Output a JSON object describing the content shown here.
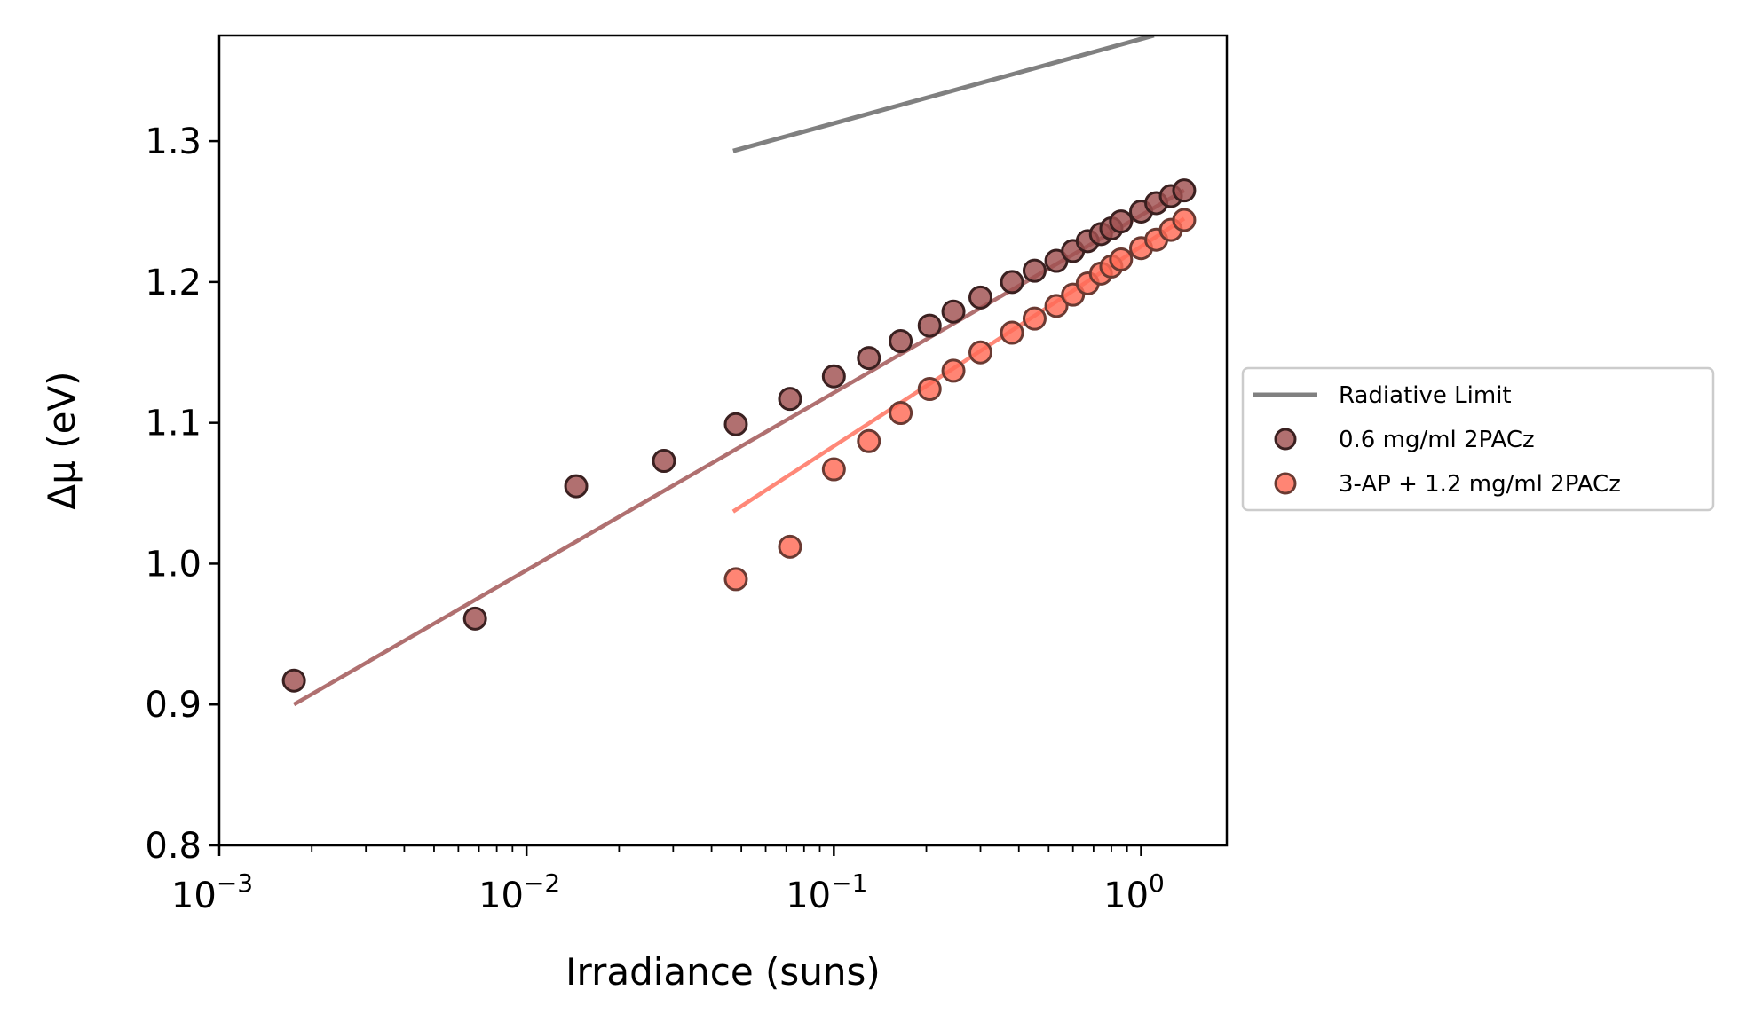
{
  "chart_data": {
    "type": "scatter",
    "xlabel": "Irradiance (suns)",
    "ylabel": "Δμ (eV)",
    "xscale": "log",
    "xlim": [
      0.001,
      1.9
    ],
    "ylim": [
      0.8,
      1.375
    ],
    "x_ticks": [
      {
        "value": 0.001,
        "base": "10",
        "exp": "−3"
      },
      {
        "value": 0.01,
        "base": "10",
        "exp": "−2"
      },
      {
        "value": 0.1,
        "base": "10",
        "exp": "−1"
      },
      {
        "value": 1,
        "base": "10",
        "exp": "0"
      }
    ],
    "y_ticks": [
      {
        "value": 0.8,
        "label": "0.8"
      },
      {
        "value": 0.9,
        "label": "0.9"
      },
      {
        "value": 1.0,
        "label": "1.0"
      },
      {
        "value": 1.1,
        "label": "1.1"
      },
      {
        "value": 1.2,
        "label": "1.2"
      },
      {
        "value": 1.3,
        "label": "1.3"
      }
    ],
    "grid": false,
    "legend_placement": "center-left outside right",
    "series": [
      {
        "name": "Radiative Limit",
        "kind": "line",
        "color": "#808080",
        "x": [
          0.047,
          1.1
        ],
        "y": [
          1.293,
          1.375
        ]
      },
      {
        "name": "0.6 mg/ml 2PACz",
        "kind": "scatter",
        "color": "#a05050",
        "edge": "#3a2020",
        "x": [
          0.00175,
          0.0068,
          0.0145,
          0.028,
          0.048,
          0.072,
          0.1,
          0.13,
          0.165,
          0.205,
          0.245,
          0.3,
          0.38,
          0.45,
          0.53,
          0.6,
          0.67,
          0.74,
          0.8,
          0.86,
          1.0,
          1.12,
          1.25,
          1.38
        ],
        "y": [
          0.917,
          0.961,
          1.055,
          1.073,
          1.099,
          1.117,
          1.133,
          1.146,
          1.158,
          1.169,
          1.179,
          1.189,
          1.2,
          1.208,
          1.215,
          1.222,
          1.229,
          1.234,
          1.238,
          1.243,
          1.25,
          1.256,
          1.261,
          1.265
        ]
      },
      {
        "name": "3-AP + 1.2 mg/ml 2PACz",
        "kind": "scatter",
        "color": "#ff6a55",
        "edge": "#6a3a32",
        "x": [
          0.048,
          0.072,
          0.1,
          0.13,
          0.165,
          0.205,
          0.245,
          0.3,
          0.38,
          0.45,
          0.53,
          0.6,
          0.67,
          0.74,
          0.8,
          0.86,
          1.0,
          1.12,
          1.25,
          1.38
        ],
        "y": [
          0.989,
          1.012,
          1.067,
          1.087,
          1.107,
          1.124,
          1.137,
          1.15,
          1.164,
          1.174,
          1.183,
          1.191,
          1.199,
          1.206,
          1.211,
          1.216,
          1.224,
          1.23,
          1.237,
          1.244
        ]
      }
    ],
    "fits": [
      {
        "for": "0.6 mg/ml 2PACz",
        "color": "#b07070",
        "x": [
          0.00175,
          1.38
        ],
        "y": [
          0.9,
          1.265
        ]
      },
      {
        "for": "3-AP + 1.2 mg/ml 2PACz",
        "color": "#ff8878",
        "x": [
          0.047,
          1.38
        ],
        "y": [
          1.037,
          1.245
        ]
      }
    ]
  }
}
